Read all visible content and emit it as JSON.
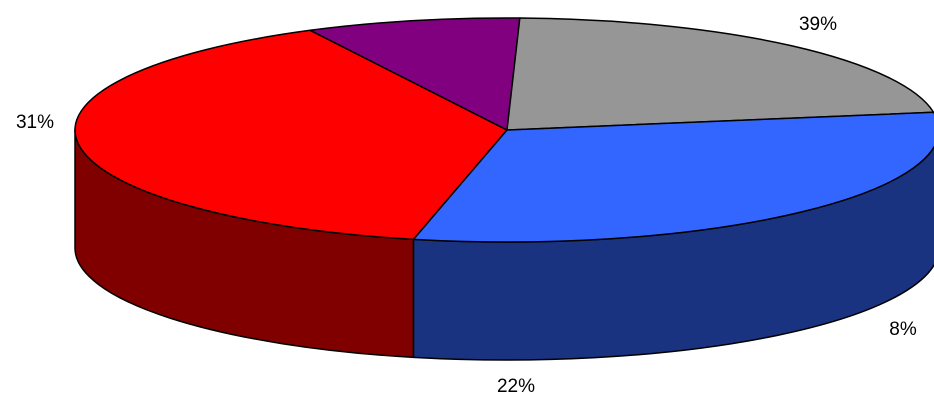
{
  "chart_data": {
    "type": "pie",
    "style": "3d",
    "title": "",
    "legend": "none",
    "slices": [
      {
        "value": 39,
        "label": "39%",
        "color": "#ff0000",
        "side_color": "#800000"
      },
      {
        "value": 8,
        "label": "8%",
        "color": "#800080",
        "side_color": "#400040"
      },
      {
        "value": 22,
        "label": "22%",
        "color": "#969696",
        "side_color": "#4d4d4d"
      },
      {
        "value": 31,
        "label": "31%",
        "color": "#3366ff",
        "side_color": "#1a3380"
      }
    ]
  }
}
